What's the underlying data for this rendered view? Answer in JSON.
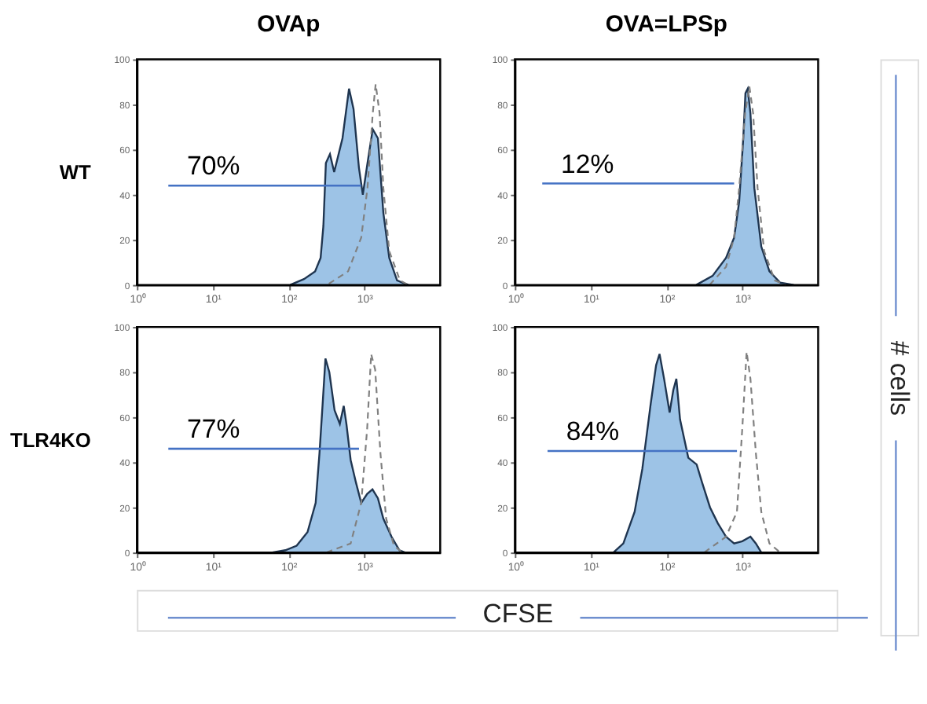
{
  "chart_data": [
    {
      "type": "area",
      "title": "OVAp",
      "ylabel": "WT",
      "log": "x",
      "xlim": [
        1,
        10000
      ],
      "ylim": [
        0,
        100
      ],
      "xticks": [
        {
          "value": 1,
          "label": "10⁰"
        },
        {
          "value": 10,
          "label": "10¹"
        },
        {
          "value": 100,
          "label": "10²"
        },
        {
          "value": 1000,
          "label": "10³"
        }
      ],
      "yticks": [
        0,
        20,
        40,
        60,
        80,
        100
      ],
      "marker": "none",
      "series": [
        {
          "color": "#9dc3e6",
          "x": [
            105,
            160,
            224,
            265,
            288,
            311,
            352,
            400,
            515,
            628,
            720,
            848,
            955,
            1100,
            1290,
            1510,
            1780,
            2130,
            2700,
            3800
          ],
          "values": [
            0,
            2.6,
            6,
            12,
            26,
            54,
            58,
            50,
            65,
            87,
            78,
            52,
            40,
            54,
            69,
            65,
            32,
            12,
            2,
            0
          ]
        },
        {
          "type": "line",
          "line_style": "dashed",
          "color": "#808080",
          "x": [
            340,
            610,
            910,
            1100,
            1290,
            1410,
            1590,
            1780,
            2130,
            2950,
            3800
          ],
          "values": [
            0.5,
            6,
            21,
            43,
            76,
            89,
            76,
            43,
            15,
            2,
            0
          ]
        },
        {
          "type": "line",
          "line_style": "solid",
          "name": "70%",
          "color": "#4472c4",
          "x": [
            2.6,
            910
          ],
          "values": [
            44,
            44
          ]
        }
      ]
    },
    {
      "type": "area",
      "title": "OVA=LPSp",
      "log": "x",
      "xlim": [
        1,
        10000
      ],
      "ylim": [
        0,
        100
      ],
      "xticks": [
        {
          "value": 1,
          "label": "10⁰"
        },
        {
          "value": 10,
          "label": "10¹"
        },
        {
          "value": 100,
          "label": "10²"
        },
        {
          "value": 1000,
          "label": "10³"
        }
      ],
      "yticks": [
        0,
        20,
        40,
        60,
        80,
        100
      ],
      "marker": "none",
      "series": [
        {
          "color": "#9dc3e6",
          "x": [
            247,
            405,
            610,
            780,
            910,
            1030,
            1100,
            1180,
            1280,
            1440,
            1780,
            2280,
            3160,
            4770
          ],
          "values": [
            0,
            4,
            12,
            21,
            37,
            65,
            85,
            87,
            76,
            43,
            17,
            6,
            1,
            0
          ]
        },
        {
          "type": "line",
          "line_style": "dashed",
          "color": "#808080",
          "x": [
            370,
            610,
            780,
            910,
            1090,
            1240,
            1390,
            1590,
            1940,
            2680,
            3730
          ],
          "values": [
            0,
            8,
            21,
            43,
            76,
            88,
            76,
            43,
            15,
            2,
            0
          ]
        },
        {
          "type": "line",
          "line_style": "solid",
          "name": "12%",
          "color": "#4472c4",
          "x": [
            2.3,
            780
          ],
          "values": [
            45,
            45
          ]
        }
      ]
    },
    {
      "type": "area",
      "ylabel": "TLR4KO",
      "log": "x",
      "xlim": [
        1,
        10000
      ],
      "ylim": [
        0,
        100
      ],
      "xticks": [
        {
          "value": 1,
          "label": "10⁰"
        },
        {
          "value": 10,
          "label": "10¹"
        },
        {
          "value": 100,
          "label": "10²"
        },
        {
          "value": 1000,
          "label": "10³"
        }
      ],
      "yticks": [
        0,
        20,
        40,
        60,
        80,
        100
      ],
      "marker": "none",
      "series": [
        {
          "color": "#9dc3e6",
          "x": [
            61,
            91,
            128,
            178,
            228,
            256,
            282,
            307,
            345,
            405,
            475,
            535,
            580,
            660,
            775,
            910,
            1090,
            1280,
            1510,
            1780,
            2280,
            2900,
            3430
          ],
          "values": [
            0,
            1,
            3,
            9,
            22,
            44,
            66,
            86,
            80,
            63,
            57,
            65,
            57,
            41,
            31,
            22,
            26,
            28,
            24,
            15,
            7,
            1,
            0
          ]
        },
        {
          "type": "line",
          "line_style": "dashed",
          "color": "#808080",
          "x": [
            316,
            660,
            910,
            1090,
            1230,
            1390,
            1630,
            1940,
            2460,
            3160
          ],
          "values": [
            0,
            4,
            22,
            55,
            88,
            81,
            44,
            15,
            3,
            0
          ]
        },
        {
          "type": "line",
          "line_style": "solid",
          "name": "77%",
          "color": "#4472c4",
          "x": [
            2.6,
            850
          ],
          "values": [
            46,
            46
          ]
        }
      ]
    },
    {
      "type": "area",
      "log": "x",
      "xlim": [
        1,
        10000
      ],
      "ylim": [
        0,
        100
      ],
      "xticks": [
        {
          "value": 1,
          "label": "10⁰"
        },
        {
          "value": 10,
          "label": "10¹"
        },
        {
          "value": 100,
          "label": "10²"
        },
        {
          "value": 1000,
          "label": "10³"
        }
      ],
      "yticks": [
        0,
        20,
        40,
        60,
        80,
        100
      ],
      "marker": "none",
      "annotations": [
        "CFSE",
        "# cells"
      ],
      "series": [
        {
          "color": "#9dc3e6",
          "x": [
            20,
            27,
            38,
            48,
            62,
            73,
            81,
            93,
            110,
            123,
            135,
            151,
            194,
            250,
            295,
            375,
            475,
            610,
            780,
            1000,
            1280,
            1510,
            1780
          ],
          "values": [
            0,
            4,
            18,
            37,
            66,
            83,
            88,
            77,
            62,
            72,
            77,
            59,
            42,
            39,
            31,
            20,
            13,
            7,
            4,
            5,
            7,
            4,
            0
          ]
        },
        {
          "type": "line",
          "line_style": "dashed",
          "color": "#808080",
          "x": [
            316,
            610,
            850,
            1000,
            1140,
            1280,
            1510,
            1780,
            2280,
            3160
          ],
          "values": [
            0,
            7,
            18,
            55,
            89,
            77,
            44,
            18,
            4,
            0
          ]
        },
        {
          "type": "line",
          "line_style": "solid",
          "name": "84%",
          "color": "#4472c4",
          "x": [
            2.7,
            850
          ],
          "values": [
            45,
            45
          ]
        }
      ]
    }
  ]
}
